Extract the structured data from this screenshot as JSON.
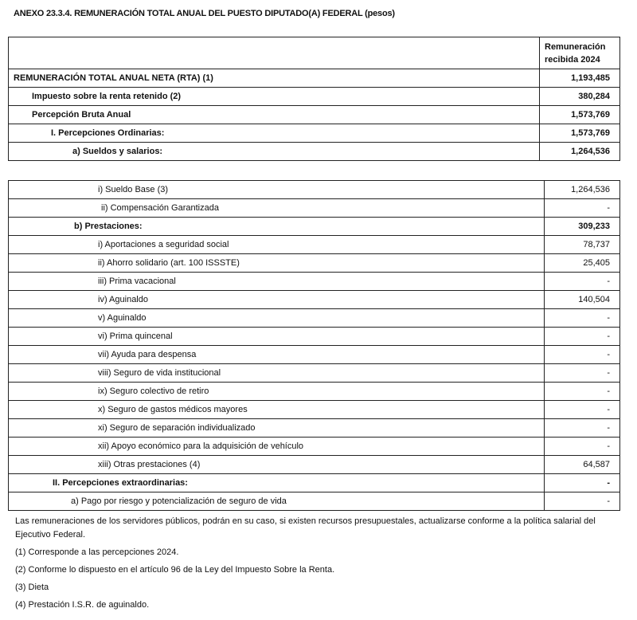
{
  "title": "ANEXO 23.3.4. REMUNERACIÓN TOTAL ANUAL DEL PUESTO DIPUTADO(A) FEDERAL (pesos)",
  "table_summary": {
    "column_header": "Remuneración recibida 2024",
    "rows": [
      {
        "label": "REMUNERACIÓN TOTAL ANUAL NETA (RTA) (1)",
        "value": "1,193,485"
      },
      {
        "label": "Impuesto sobre la renta retenido (2)",
        "value": "380,284"
      },
      {
        "label": "Percepción Bruta Anual",
        "value": "1,573,769"
      },
      {
        "label": "I. Percepciones Ordinarias:",
        "value": "1,573,769"
      },
      {
        "label": "a) Sueldos y salarios:",
        "value": "1,264,536"
      }
    ]
  },
  "table_detail": {
    "rows": [
      {
        "label": "i) Sueldo Base (3)",
        "value": "1,264,536"
      },
      {
        "label": "ii) Compensación Garantizada",
        "value": "-"
      },
      {
        "label": "b) Prestaciones:",
        "value": "309,233"
      },
      {
        "label": "i) Aportaciones a seguridad social",
        "value": "78,737"
      },
      {
        "label": "ii) Ahorro solidario (art. 100 ISSSTE)",
        "value": "25,405"
      },
      {
        "label": "iii) Prima vacacional",
        "value": "-"
      },
      {
        "label": "iv) Aguinaldo",
        "value": "140,504"
      },
      {
        "label": "v) Aguinaldo",
        "value": "-"
      },
      {
        "label": "vi) Prima quincenal",
        "value": "-"
      },
      {
        "label": "vii) Ayuda para despensa",
        "value": "-"
      },
      {
        "label": "viii) Seguro de vida institucional",
        "value": "-"
      },
      {
        "label": "ix) Seguro colectivo de retiro",
        "value": "-"
      },
      {
        "label": "x) Seguro de gastos médicos mayores",
        "value": "-"
      },
      {
        "label": "xi) Seguro de separación individualizado",
        "value": "-"
      },
      {
        "label": "xii) Apoyo económico para la adquisición de vehículo",
        "value": "-"
      },
      {
        "label": "xiii) Otras prestaciones (4)",
        "value": "64,587"
      },
      {
        "label": "II. Percepciones extraordinarias:",
        "value": "-"
      },
      {
        "label": "a) Pago por riesgo y potencialización de seguro de vida",
        "value": "-"
      }
    ]
  },
  "notes": [
    "Las remuneraciones de los servidores públicos, podrán en su caso, si existen recursos presupuestales, actualizarse conforme a la política salarial del Ejecutivo Federal.",
    "(1) Corresponde a las percepciones 2024.",
    "(2) Conforme lo dispuesto en el artículo 96 de la Ley del Impuesto Sobre la Renta.",
    "(3) Dieta",
    "(4) Prestación I.S.R. de aguinaldo."
  ]
}
